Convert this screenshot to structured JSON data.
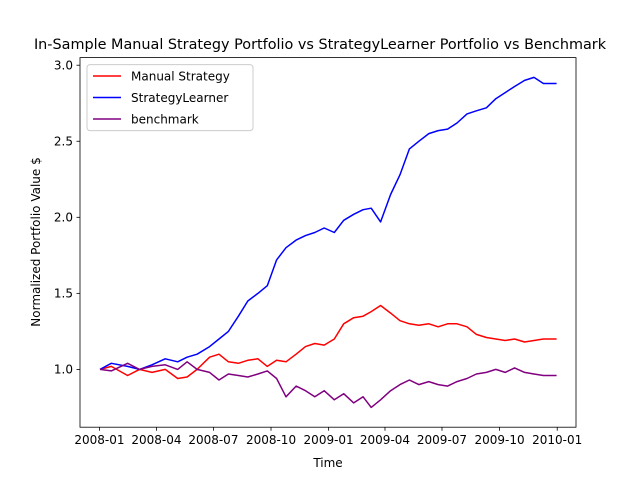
{
  "chart_data": {
    "type": "line",
    "title": "In-Sample Manual Strategy Portfolio vs StrategyLearner Portfolio vs Benchmark",
    "xlabel": "Time",
    "ylabel": "Normalized Portfolio Value $",
    "x_ticks": [
      "2008-01",
      "2008-04",
      "2008-07",
      "2008-10",
      "2009-01",
      "2009-04",
      "2009-07",
      "2009-10",
      "2010-01"
    ],
    "y_ticks": [
      "1.0",
      "1.5",
      "2.0",
      "2.5",
      "3.0"
    ],
    "xlim": [
      "2007-12-01",
      "2010-01-31"
    ],
    "ylim": [
      0.62,
      3.05
    ],
    "grid": false,
    "legend_position": "top-left",
    "series": [
      {
        "name": "Manual Strategy",
        "color": "#ff0000",
        "x": [
          "2008-01-02",
          "2008-01-20",
          "2008-02-15",
          "2008-03-05",
          "2008-03-25",
          "2008-04-15",
          "2008-05-05",
          "2008-05-20",
          "2008-06-05",
          "2008-06-25",
          "2008-07-10",
          "2008-07-25",
          "2008-08-10",
          "2008-08-25",
          "2008-09-10",
          "2008-09-25",
          "2008-10-10",
          "2008-10-25",
          "2008-11-10",
          "2008-11-25",
          "2008-12-10",
          "2008-12-25",
          "2009-01-10",
          "2009-01-25",
          "2009-02-10",
          "2009-02-25",
          "2009-03-10",
          "2009-03-25",
          "2009-04-10",
          "2009-04-25",
          "2009-05-10",
          "2009-05-25",
          "2009-06-10",
          "2009-06-25",
          "2009-07-10",
          "2009-07-25",
          "2009-08-10",
          "2009-08-25",
          "2009-09-10",
          "2009-09-25",
          "2009-10-10",
          "2009-10-25",
          "2009-11-10",
          "2009-11-25",
          "2009-12-10",
          "2009-12-31"
        ],
        "values": [
          1.0,
          1.02,
          0.96,
          1.0,
          0.98,
          1.0,
          0.94,
          0.95,
          1.0,
          1.08,
          1.1,
          1.05,
          1.04,
          1.06,
          1.07,
          1.02,
          1.06,
          1.05,
          1.1,
          1.15,
          1.17,
          1.16,
          1.2,
          1.3,
          1.34,
          1.35,
          1.38,
          1.42,
          1.37,
          1.32,
          1.3,
          1.29,
          1.3,
          1.28,
          1.3,
          1.3,
          1.28,
          1.23,
          1.21,
          1.2,
          1.19,
          1.2,
          1.18,
          1.19,
          1.2,
          1.2
        ]
      },
      {
        "name": "StrategyLearner",
        "color": "#0000ff",
        "x": [
          "2008-01-02",
          "2008-01-20",
          "2008-02-15",
          "2008-03-05",
          "2008-03-25",
          "2008-04-15",
          "2008-05-05",
          "2008-05-20",
          "2008-06-05",
          "2008-06-25",
          "2008-07-10",
          "2008-07-25",
          "2008-08-10",
          "2008-08-25",
          "2008-09-10",
          "2008-09-25",
          "2008-10-10",
          "2008-10-25",
          "2008-11-10",
          "2008-11-25",
          "2008-12-10",
          "2008-12-25",
          "2009-01-10",
          "2009-01-25",
          "2009-02-10",
          "2009-02-25",
          "2009-03-10",
          "2009-03-25",
          "2009-04-10",
          "2009-04-25",
          "2009-05-10",
          "2009-05-25",
          "2009-06-10",
          "2009-06-25",
          "2009-07-10",
          "2009-07-25",
          "2009-08-10",
          "2009-08-25",
          "2009-09-10",
          "2009-09-25",
          "2009-10-10",
          "2009-10-25",
          "2009-11-10",
          "2009-11-25",
          "2009-12-10",
          "2009-12-31"
        ],
        "values": [
          1.0,
          1.04,
          1.02,
          1.0,
          1.03,
          1.07,
          1.05,
          1.08,
          1.1,
          1.15,
          1.2,
          1.25,
          1.35,
          1.45,
          1.5,
          1.55,
          1.72,
          1.8,
          1.85,
          1.88,
          1.9,
          1.93,
          1.9,
          1.98,
          2.02,
          2.05,
          2.06,
          1.97,
          2.15,
          2.28,
          2.45,
          2.5,
          2.55,
          2.57,
          2.58,
          2.62,
          2.68,
          2.7,
          2.72,
          2.78,
          2.82,
          2.86,
          2.9,
          2.92,
          2.88,
          2.88
        ]
      },
      {
        "name": "benchmark",
        "color": "#800080",
        "x": [
          "2008-01-02",
          "2008-01-20",
          "2008-02-15",
          "2008-03-05",
          "2008-03-25",
          "2008-04-15",
          "2008-05-05",
          "2008-05-20",
          "2008-06-05",
          "2008-06-25",
          "2008-07-10",
          "2008-07-25",
          "2008-08-10",
          "2008-08-25",
          "2008-09-10",
          "2008-09-25",
          "2008-10-10",
          "2008-10-25",
          "2008-11-10",
          "2008-11-25",
          "2008-12-10",
          "2008-12-25",
          "2009-01-10",
          "2009-01-25",
          "2009-02-10",
          "2009-02-25",
          "2009-03-10",
          "2009-03-25",
          "2009-04-10",
          "2009-04-25",
          "2009-05-10",
          "2009-05-25",
          "2009-06-10",
          "2009-06-25",
          "2009-07-10",
          "2009-07-25",
          "2009-08-10",
          "2009-08-25",
          "2009-09-10",
          "2009-09-25",
          "2009-10-10",
          "2009-10-25",
          "2009-11-10",
          "2009-11-25",
          "2009-12-10",
          "2009-12-31"
        ],
        "values": [
          1.0,
          0.99,
          1.04,
          1.0,
          1.02,
          1.03,
          1.0,
          1.05,
          1.0,
          0.98,
          0.93,
          0.97,
          0.96,
          0.95,
          0.97,
          0.99,
          0.94,
          0.82,
          0.89,
          0.86,
          0.82,
          0.86,
          0.8,
          0.84,
          0.78,
          0.82,
          0.75,
          0.8,
          0.86,
          0.9,
          0.93,
          0.9,
          0.92,
          0.9,
          0.89,
          0.92,
          0.94,
          0.97,
          0.98,
          1.0,
          0.98,
          1.01,
          0.98,
          0.97,
          0.96,
          0.96
        ]
      }
    ]
  }
}
